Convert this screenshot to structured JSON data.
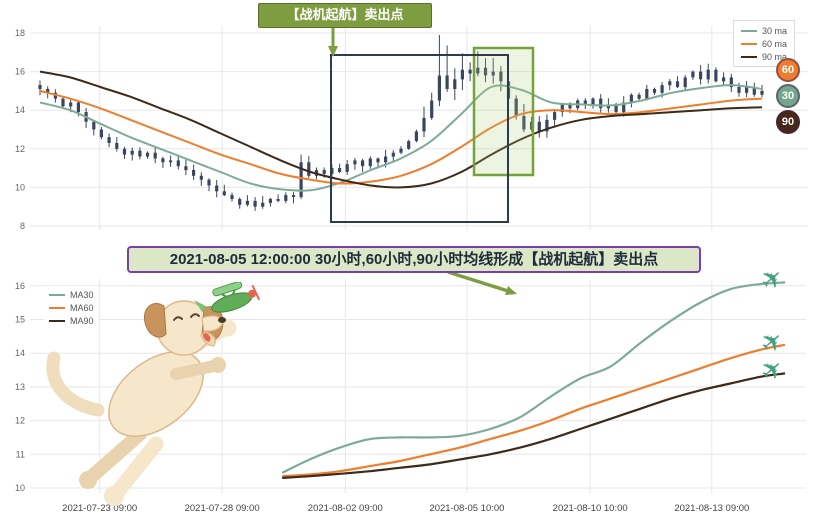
{
  "banner": {
    "text": "2021-08-05 12:00:00 30小时,60小时,90小时均线形成【战机起航】卖出点"
  },
  "colors": {
    "grid": "#e7e7e7",
    "axis": "#666666",
    "candle": "#3a4660",
    "ma30": "#7dab96",
    "ma60": "#ee7d2c",
    "ma90": "#3c2a1a",
    "annotation": "#7d9d40",
    "navy_box": "#2e3a50",
    "highlight_stroke": "#76a23c",
    "highlight_fill": "rgba(173,203,120,0.22)",
    "plane": "#43a183"
  },
  "chart_data": [
    {
      "name": "hourly-candles-with-ma",
      "type": "candlestick",
      "annotation": "【战机起航】卖出点",
      "ylim": [
        8,
        18
      ],
      "yticks": [
        8,
        10,
        12,
        14,
        16,
        18
      ],
      "legend": [
        {
          "label": "30 ma",
          "color": "#7dab96"
        },
        {
          "label": "60 ma",
          "color": "#ee7d2c"
        },
        {
          "label": "90 ma",
          "color": "#3c2a1a"
        }
      ],
      "badges": [
        {
          "label": "60",
          "bg": "#ed7d31"
        },
        {
          "label": "30",
          "bg": "#74a68e"
        },
        {
          "label": "90",
          "bg": "#47291a"
        }
      ],
      "candles_close": [
        15.1,
        14.9,
        14.6,
        14.2,
        14.4,
        13.9,
        13.4,
        13.0,
        12.6,
        12.3,
        12.0,
        11.7,
        11.9,
        11.6,
        11.8,
        11.5,
        11.3,
        11.4,
        11.1,
        10.9,
        10.6,
        10.4,
        10.1,
        9.8,
        9.6,
        9.4,
        9.1,
        9.3,
        9.0,
        9.2,
        9.4,
        9.3,
        9.6,
        9.5,
        11.3,
        10.6,
        10.9,
        10.7,
        11.0,
        10.8,
        11.2,
        11.4,
        11.1,
        11.5,
        11.3,
        11.6,
        11.8,
        12.0,
        12.4,
        12.9,
        13.6,
        14.5,
        15.8,
        15.1,
        15.6,
        16.1,
        15.9,
        16.2,
        15.8,
        16.0,
        15.5,
        14.6,
        13.7,
        13.0,
        13.4,
        12.9,
        13.5,
        13.9,
        14.3,
        14.1,
        14.5,
        14.3,
        14.6,
        14.1,
        14.3,
        13.9,
        14.4,
        14.8,
        14.6,
        15.1,
        14.9,
        15.3,
        15.5,
        15.2,
        15.7,
        16.0,
        15.6,
        16.1,
        15.5,
        15.7,
        15.2,
        14.9,
        15.2,
        14.8,
        15.0
      ],
      "high_overrides": {
        "34": 11.7,
        "52": 17.9,
        "53": 17.35,
        "55": 16.95,
        "57": 17.05,
        "59": 16.7
      },
      "low_overrides": {
        "28": 8.78,
        "34": 9.4,
        "61": 13.9
      },
      "ma": {
        "ma30": [
          14.4,
          14.0,
          13.3,
          12.6,
          12.0,
          11.4,
          10.8,
          10.2,
          9.9,
          9.85,
          10.25,
          10.9,
          11.5,
          12.4,
          13.8,
          15.2,
          15.05,
          14.4,
          14.3,
          14.25,
          14.5,
          14.9,
          15.15,
          15.3,
          15.1
        ],
        "ma60": [
          15.0,
          14.6,
          14.1,
          13.5,
          12.9,
          12.3,
          11.7,
          11.2,
          10.7,
          10.4,
          10.2,
          10.3,
          10.6,
          11.2,
          12.1,
          13.1,
          13.8,
          14.0,
          13.9,
          13.8,
          13.9,
          14.1,
          14.3,
          14.5,
          14.6
        ],
        "ma90": [
          16.0,
          15.7,
          15.2,
          14.7,
          14.1,
          13.5,
          12.8,
          12.1,
          11.4,
          10.8,
          10.4,
          10.1,
          10.0,
          10.2,
          10.8,
          11.7,
          12.5,
          13.1,
          13.5,
          13.7,
          13.8,
          13.9,
          14.0,
          14.1,
          14.15
        ]
      }
    },
    {
      "name": "ma-lines-zoom",
      "type": "line",
      "ylim": [
        10,
        16
      ],
      "yticks": [
        10,
        11,
        12,
        13,
        14,
        15,
        16
      ],
      "x_labels": [
        "2021-07-23 09:00",
        "2021-07-28 09:00",
        "2021-08-02 09:00",
        "2021-08-05 10:00",
        "2021-08-10 10:00",
        "2021-08-13 09:00"
      ],
      "x_label_t": [
        0.084,
        0.243,
        0.403,
        0.561,
        0.721,
        0.879
      ],
      "legend": [
        {
          "label": "MA30",
          "color": "#7dab96"
        },
        {
          "label": "MA60",
          "color": "#ee7d2c"
        },
        {
          "label": "MA90",
          "color": "#3c2a1a"
        }
      ],
      "x_t": [
        0.321,
        0.357,
        0.396,
        0.435,
        0.474,
        0.513,
        0.552,
        0.591,
        0.63,
        0.669,
        0.708,
        0.747,
        0.786,
        0.825,
        0.864,
        0.903,
        0.942,
        0.974
      ],
      "series": [
        {
          "name": "MA30",
          "color": "#7dab96",
          "values": [
            10.45,
            10.85,
            11.2,
            11.45,
            11.5,
            11.5,
            11.55,
            11.75,
            12.1,
            12.7,
            13.25,
            13.6,
            14.3,
            14.95,
            15.5,
            15.9,
            16.05,
            16.1
          ]
        },
        {
          "name": "MA60",
          "color": "#ee7d2c",
          "values": [
            10.35,
            10.4,
            10.5,
            10.65,
            10.8,
            11.0,
            11.2,
            11.45,
            11.7,
            12.0,
            12.35,
            12.65,
            12.95,
            13.25,
            13.55,
            13.85,
            14.1,
            14.25
          ]
        },
        {
          "name": "MA90",
          "color": "#3c2a1a",
          "values": [
            10.3,
            10.35,
            10.42,
            10.5,
            10.6,
            10.7,
            10.85,
            11.0,
            11.2,
            11.45,
            11.75,
            12.05,
            12.35,
            12.65,
            12.9,
            13.1,
            13.3,
            13.4
          ]
        }
      ]
    }
  ]
}
